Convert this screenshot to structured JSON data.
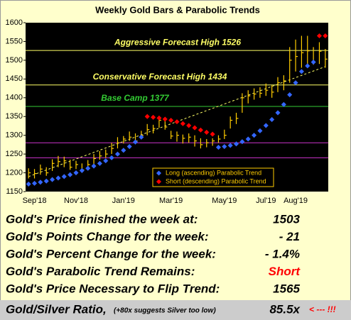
{
  "chart_data": {
    "type": "ohlc",
    "title": "Weekly Gold Bars & Parabolic Trends",
    "categories": [
      null,
      "Sep'18",
      null,
      null,
      null,
      null,
      null,
      null,
      "Nov'18",
      null,
      null,
      null,
      null,
      null,
      null,
      null,
      "Jan'19",
      null,
      null,
      null,
      null,
      null,
      null,
      null,
      "Mar'19",
      null,
      null,
      null,
      null,
      null,
      null,
      null,
      null,
      "May'19",
      null,
      null,
      null,
      null,
      null,
      null,
      "Jul'19",
      null,
      null,
      null,
      null,
      "Aug'19",
      null,
      null,
      null,
      null,
      null
    ],
    "high": [
      1212,
      1210,
      1222,
      1215,
      1236,
      1245,
      1243,
      1235,
      1232,
      1225,
      1234,
      1250,
      1258,
      1262,
      1280,
      1295,
      1298,
      1310,
      1305,
      1312,
      1330,
      1328,
      1350,
      1345,
      1312,
      1310,
      1302,
      1305,
      1300,
      1292,
      1290,
      1292,
      1300,
      1315,
      1350,
      1360,
      1412,
      1420,
      1425,
      1428,
      1438,
      1433,
      1455,
      1460,
      1535,
      1555,
      1565,
      1565,
      1535,
      1548,
      1530
    ],
    "low": [
      1185,
      1185,
      1195,
      1192,
      1205,
      1215,
      1215,
      1208,
      1210,
      1200,
      1210,
      1222,
      1235,
      1240,
      1250,
      1265,
      1278,
      1285,
      1278,
      1290,
      1300,
      1305,
      1320,
      1315,
      1290,
      1283,
      1278,
      1280,
      1270,
      1265,
      1268,
      1272,
      1280,
      1290,
      1318,
      1330,
      1360,
      1385,
      1395,
      1400,
      1405,
      1400,
      1415,
      1420,
      1440,
      1470,
      1480,
      1490,
      1488,
      1490,
      1480
    ],
    "close": [
      1200,
      1198,
      1210,
      1200,
      1225,
      1230,
      1232,
      1215,
      1222,
      1208,
      1222,
      1238,
      1245,
      1250,
      1265,
      1280,
      1290,
      1295,
      1285,
      1300,
      1315,
      1318,
      1340,
      1322,
      1298,
      1300,
      1292,
      1295,
      1285,
      1275,
      1280,
      1285,
      1290,
      1300,
      1340,
      1345,
      1400,
      1405,
      1410,
      1412,
      1420,
      1415,
      1440,
      1445,
      1500,
      1510,
      1520,
      1525,
      1495,
      1524,
      1503
    ],
    "bar_color": "#ffcc00",
    "series": [
      {
        "name": "Long (ascending) Parabolic Trend",
        "color": "#3366ff",
        "values": [
          1170,
          1172,
          1175,
          1178,
          1182,
          1186,
          1190,
          1195,
          1200,
          1206,
          1212,
          1218,
          1225,
          1232,
          1240,
          1250,
          1260,
          1270,
          1282,
          1295,
          null,
          null,
          null,
          null,
          null,
          null,
          null,
          null,
          null,
          null,
          null,
          null,
          1268,
          1270,
          1273,
          1277,
          1283,
          1290,
          1300,
          1312,
          1326,
          1342,
          1360,
          1382,
          1408,
          1440,
          1470,
          1485,
          1495,
          null,
          null
        ]
      },
      {
        "name": "Short (descending) Parabolic Trend",
        "color": "#ff0000",
        "values": [
          null,
          null,
          null,
          null,
          null,
          null,
          null,
          null,
          null,
          null,
          null,
          null,
          null,
          null,
          null,
          null,
          null,
          null,
          null,
          null,
          1350,
          1348,
          1346,
          1343,
          1340,
          1336,
          1331,
          1326,
          1320,
          1314,
          1308,
          1303,
          null,
          null,
          null,
          null,
          null,
          null,
          null,
          null,
          null,
          null,
          null,
          null,
          null,
          null,
          null,
          null,
          null,
          1565,
          1565
        ]
      }
    ],
    "trendline": [
      1190,
      1483
    ],
    "hlines": [
      {
        "value": 1526,
        "color": "#ffff66",
        "label": "Aggressive Forecast High 1526"
      },
      {
        "value": 1434,
        "color": "#ffff66",
        "label": "Conservative Forecast High 1434"
      },
      {
        "value": 1377,
        "color": "#33cc33",
        "label": "Base Camp 1377"
      },
      {
        "value": 1280,
        "color": "#cc33cc"
      },
      {
        "value": 1240,
        "color": "#cc33cc"
      }
    ],
    "ylim": [
      1150,
      1600
    ],
    "yticks": [
      1150,
      1200,
      1250,
      1300,
      1350,
      1400,
      1450,
      1500,
      1550,
      1600
    ],
    "legend": "bottom-right"
  },
  "table": {
    "rows": [
      {
        "label": "Gold's Price finished the week at:",
        "value": "1503"
      },
      {
        "label": "Gold's Points Change for the week:",
        "value": "- 21"
      },
      {
        "label": "Gold's Percent Change for the week:",
        "value": "- 1.4%"
      },
      {
        "label": "Gold's Parabolic Trend Remains:",
        "value": "Short",
        "color": "#ff0000"
      },
      {
        "label": "Gold's Price Necessary to Flip Trend:",
        "value": "1565"
      }
    ],
    "ratio": {
      "label": "Gold/Silver Ratio,",
      "note": "(+80x suggests Silver too low)",
      "value": "85.5x",
      "flag": "< --- !!!"
    }
  }
}
